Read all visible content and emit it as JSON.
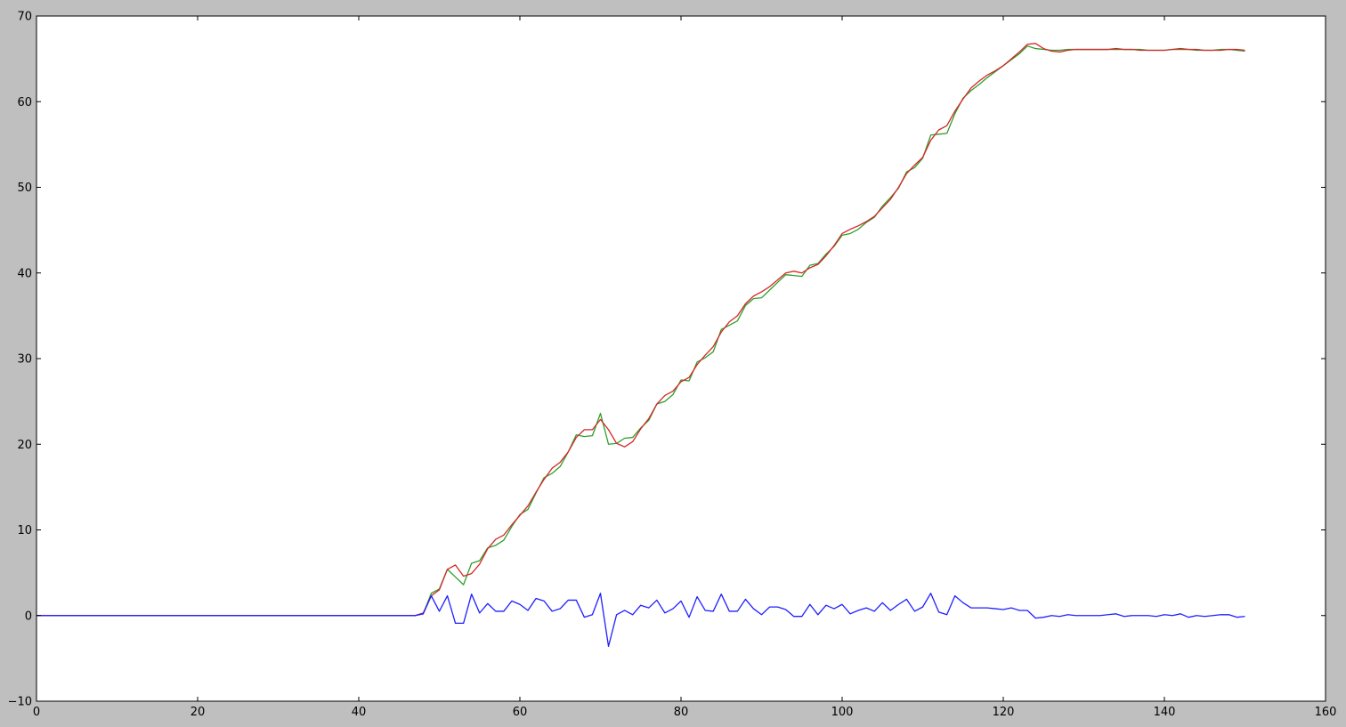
{
  "chart_data": {
    "type": "line",
    "title": "",
    "xlabel": "",
    "ylabel": "",
    "xlim": [
      0,
      160
    ],
    "ylim": [
      -10,
      70
    ],
    "xticks": [
      0,
      20,
      40,
      60,
      80,
      100,
      120,
      140,
      160
    ],
    "yticks": [
      -10,
      0,
      10,
      20,
      30,
      40,
      50,
      60,
      70
    ],
    "x_tick_labels": [
      "0",
      "20",
      "40",
      "60",
      "80",
      "100",
      "120",
      "140",
      "160"
    ],
    "y_tick_labels": [
      "−10",
      "0",
      "10",
      "20",
      "30",
      "40",
      "50",
      "60",
      "70"
    ],
    "grid": false,
    "legend": "none",
    "figure_background": "#bfbfbf",
    "axes_background": "#ffffff",
    "series": [
      {
        "color": "#2ca02c",
        "x": [
          0,
          47,
          48,
          49,
          50,
          51,
          52,
          53,
          54,
          55,
          56,
          57,
          58,
          59,
          60,
          61,
          62,
          63,
          64,
          65,
          66,
          67,
          68,
          69,
          70,
          71,
          72,
          73,
          74,
          75,
          76,
          77,
          78,
          79,
          80,
          81,
          82,
          83,
          84,
          85,
          86,
          87,
          88,
          89,
          90,
          91,
          92,
          93,
          94,
          95,
          96,
          97,
          98,
          99,
          100,
          101,
          102,
          103,
          104,
          105,
          106,
          107,
          108,
          109,
          110,
          111,
          112,
          113,
          114,
          115,
          116,
          117,
          118,
          119,
          120,
          121,
          122,
          123,
          124,
          125,
          126,
          127,
          128,
          129,
          130,
          131,
          132,
          133,
          134,
          135,
          136,
          137,
          138,
          139,
          140,
          141,
          142,
          143,
          144,
          145,
          146,
          147,
          148,
          149,
          150
        ],
        "y": [
          0,
          0,
          0.2,
          2.6,
          3.1,
          5.4,
          4.5,
          3.6,
          6.1,
          6.4,
          7.9,
          8.2,
          8.8,
          10.4,
          11.8,
          12.4,
          14.3,
          16.1,
          16.6,
          17.4,
          19.1,
          21.1,
          20.9,
          21.0,
          23.6,
          20.0,
          20.1,
          20.7,
          20.8,
          21.9,
          22.8,
          24.7,
          25.0,
          25.8,
          27.5,
          27.4,
          29.6,
          30.1,
          30.8,
          33.4,
          33.9,
          34.4,
          36.2,
          37.0,
          37.1,
          38.0,
          38.9,
          39.8,
          39.7,
          39.6,
          40.9,
          41.1,
          42.2,
          43.1,
          44.4,
          44.6,
          45.1,
          45.9,
          46.5,
          47.8,
          48.8,
          49.9,
          51.8,
          52.3,
          53.4,
          56.1,
          56.2,
          56.3,
          58.6,
          60.4,
          61.3,
          62.0,
          62.8,
          63.5,
          64.2,
          64.9,
          65.6,
          66.5,
          66.2,
          66.1,
          66.0,
          66.0,
          66.1,
          66.1,
          66.1,
          66.1,
          66.1,
          66.1,
          66.1,
          66.1,
          66.1,
          66.1,
          66.0,
          66.0,
          66.0,
          66.1,
          66.1,
          66.1,
          66.0,
          66.0,
          66.0,
          66.1,
          66.1,
          66.0,
          65.9
        ]
      },
      {
        "color": "#d62728",
        "x": [
          0,
          47,
          48,
          49,
          50,
          51,
          52,
          53,
          54,
          55,
          56,
          57,
          58,
          59,
          60,
          61,
          62,
          63,
          64,
          65,
          66,
          67,
          68,
          69,
          70,
          71,
          72,
          73,
          74,
          75,
          76,
          77,
          78,
          79,
          80,
          81,
          82,
          83,
          84,
          85,
          86,
          87,
          88,
          89,
          90,
          91,
          92,
          93,
          94,
          95,
          96,
          97,
          98,
          99,
          100,
          101,
          102,
          103,
          104,
          105,
          106,
          107,
          108,
          109,
          110,
          111,
          112,
          113,
          114,
          115,
          116,
          117,
          118,
          119,
          120,
          121,
          122,
          123,
          124,
          125,
          126,
          127,
          128,
          129,
          130,
          131,
          132,
          133,
          134,
          135,
          136,
          137,
          138,
          139,
          140,
          141,
          142,
          143,
          144,
          145,
          146,
          147,
          148,
          149,
          150
        ],
        "y": [
          0,
          0,
          0.3,
          2.3,
          3.0,
          5.4,
          5.9,
          4.6,
          4.9,
          6.0,
          7.8,
          8.9,
          9.4,
          10.6,
          11.7,
          12.8,
          14.4,
          15.9,
          17.2,
          17.9,
          19.1,
          20.8,
          21.7,
          21.7,
          22.9,
          21.7,
          20.1,
          19.7,
          20.3,
          21.8,
          23.0,
          24.7,
          25.7,
          26.2,
          27.3,
          27.8,
          29.3,
          30.4,
          31.4,
          33.1,
          34.3,
          35.0,
          36.4,
          37.3,
          37.8,
          38.4,
          39.2,
          40.0,
          40.2,
          40.0,
          40.6,
          41.0,
          42.0,
          43.2,
          44.6,
          45.1,
          45.5,
          46.0,
          46.6,
          47.6,
          48.6,
          50.0,
          51.6,
          52.6,
          53.5,
          55.5,
          56.7,
          57.2,
          58.9,
          60.3,
          61.6,
          62.4,
          63.1,
          63.6,
          64.2,
          65.0,
          65.8,
          66.7,
          66.8,
          66.2,
          65.9,
          65.8,
          66.0,
          66.1,
          66.1,
          66.1,
          66.1,
          66.1,
          66.2,
          66.1,
          66.1,
          66.0,
          66.0,
          66.0,
          66.0,
          66.1,
          66.2,
          66.1,
          66.1,
          66.0,
          66.0,
          66.0,
          66.1,
          66.1,
          66.0
        ]
      },
      {
        "color": "#1f1fff",
        "x": [
          0,
          47,
          48,
          49,
          50,
          51,
          52,
          53,
          54,
          55,
          56,
          57,
          58,
          59,
          60,
          61,
          62,
          63,
          64,
          65,
          66,
          67,
          68,
          69,
          70,
          71,
          72,
          73,
          74,
          75,
          76,
          77,
          78,
          79,
          80,
          81,
          82,
          83,
          84,
          85,
          86,
          87,
          88,
          89,
          90,
          91,
          92,
          93,
          94,
          95,
          96,
          97,
          98,
          99,
          100,
          101,
          102,
          103,
          104,
          105,
          106,
          107,
          108,
          109,
          110,
          111,
          112,
          113,
          114,
          115,
          116,
          117,
          118,
          119,
          120,
          121,
          122,
          123,
          124,
          125,
          126,
          127,
          128,
          129,
          130,
          131,
          132,
          133,
          134,
          135,
          136,
          137,
          138,
          139,
          140,
          141,
          142,
          143,
          144,
          145,
          146,
          147,
          148,
          149,
          150
        ],
        "y": [
          0,
          0,
          0.2,
          2.3,
          0.5,
          2.3,
          -0.9,
          -0.9,
          2.5,
          0.3,
          1.4,
          0.5,
          0.5,
          1.7,
          1.3,
          0.6,
          2.0,
          1.7,
          0.5,
          0.8,
          1.8,
          1.8,
          -0.2,
          0.1,
          2.6,
          -3.6,
          0.1,
          0.6,
          0.1,
          1.2,
          0.9,
          1.8,
          0.3,
          0.8,
          1.7,
          -0.2,
          2.2,
          0.6,
          0.5,
          2.5,
          0.5,
          0.5,
          1.9,
          0.8,
          0.1,
          1.0,
          1.0,
          0.7,
          -0.1,
          -0.1,
          1.3,
          0.1,
          1.2,
          0.8,
          1.3,
          0.2,
          0.6,
          0.9,
          0.5,
          1.5,
          0.6,
          1.3,
          1.9,
          0.5,
          1.0,
          2.6,
          0.4,
          0.1,
          2.3,
          1.5,
          0.9,
          0.9,
          0.9,
          0.8,
          0.7,
          0.9,
          0.6,
          0.6,
          -0.3,
          -0.2,
          0.0,
          -0.1,
          0.1,
          0.0,
          0.0,
          0.0,
          0.0,
          0.1,
          0.2,
          -0.1,
          0.0,
          0.0,
          0.0,
          -0.1,
          0.1,
          0.0,
          0.2,
          -0.2,
          0.0,
          -0.1,
          0.0,
          0.1,
          0.1,
          -0.2,
          -0.1
        ]
      }
    ]
  }
}
